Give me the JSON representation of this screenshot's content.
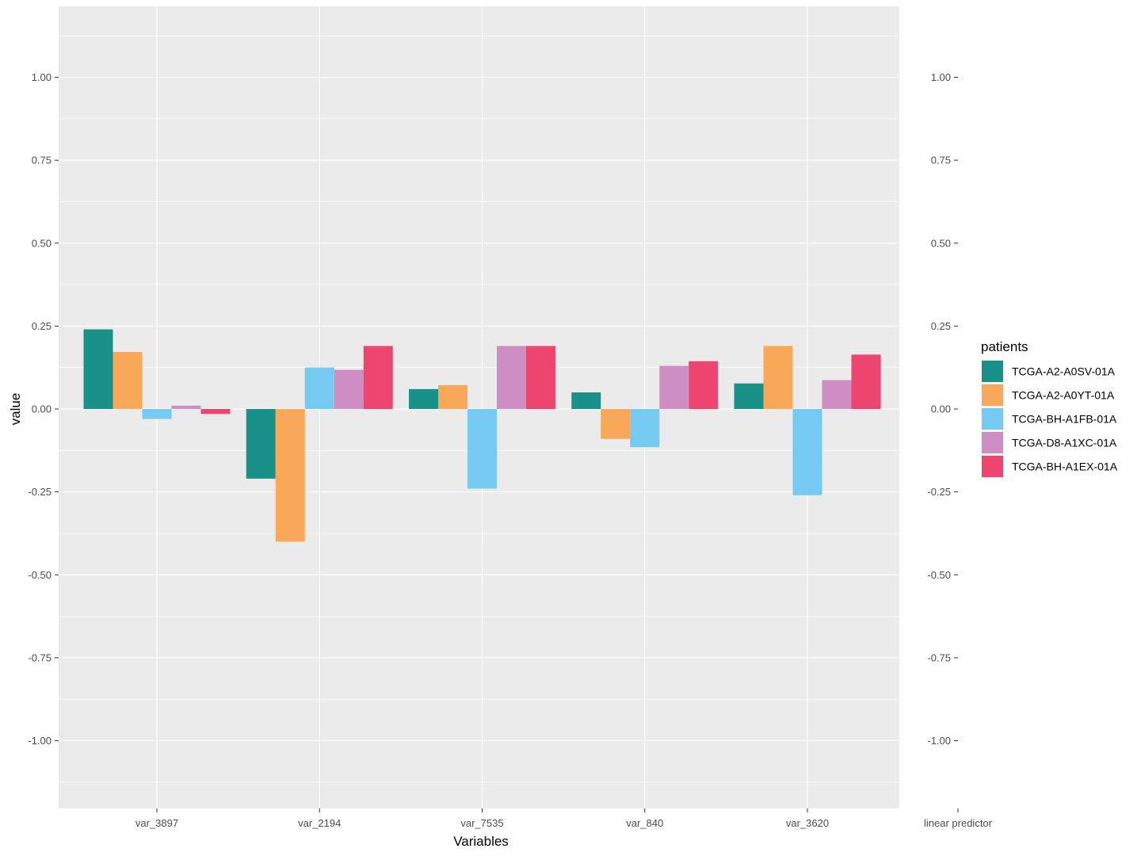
{
  "chart_data": {
    "type": "bar",
    "title": "",
    "xlabel": "Variables",
    "ylabel": "value",
    "categories": [
      "var_3897",
      "var_2194",
      "var_7535",
      "var_840",
      "var_3620"
    ],
    "extra_axis_label": "linear predictor",
    "ylim": [
      -1.2,
      1.2
    ],
    "yticks": [
      -1.0,
      -0.75,
      -0.5,
      -0.25,
      0.0,
      0.25,
      0.5,
      0.75,
      1.0
    ],
    "ytick_labels": [
      "-1.00",
      "-0.75",
      "-0.50",
      "-0.25",
      "0.00",
      "0.25",
      "0.50",
      "0.75",
      "1.00"
    ],
    "grid": true,
    "legend": {
      "title": "patients",
      "position": "right"
    },
    "series": [
      {
        "name": "TCGA-A2-A0SV-01A",
        "color": "#1a9188",
        "values": [
          0.24,
          -0.21,
          0.06,
          0.05,
          0.077
        ]
      },
      {
        "name": "TCGA-A2-A0YT-01A",
        "color": "#f8a858",
        "values": [
          0.172,
          -0.4,
          0.072,
          -0.09,
          0.19
        ]
      },
      {
        "name": "TCGA-BH-A1FB-01A",
        "color": "#74caf0",
        "values": [
          -0.03,
          0.125,
          -0.24,
          -0.115,
          -0.26
        ]
      },
      {
        "name": "TCGA-D8-A1XC-01A",
        "color": "#cd8ec4",
        "values": [
          0.01,
          0.118,
          0.19,
          0.13,
          0.087
        ]
      },
      {
        "name": "TCGA-BH-A1EX-01A",
        "color": "#ee4570",
        "values": [
          -0.015,
          0.19,
          0.19,
          0.144,
          0.164
        ]
      }
    ]
  }
}
